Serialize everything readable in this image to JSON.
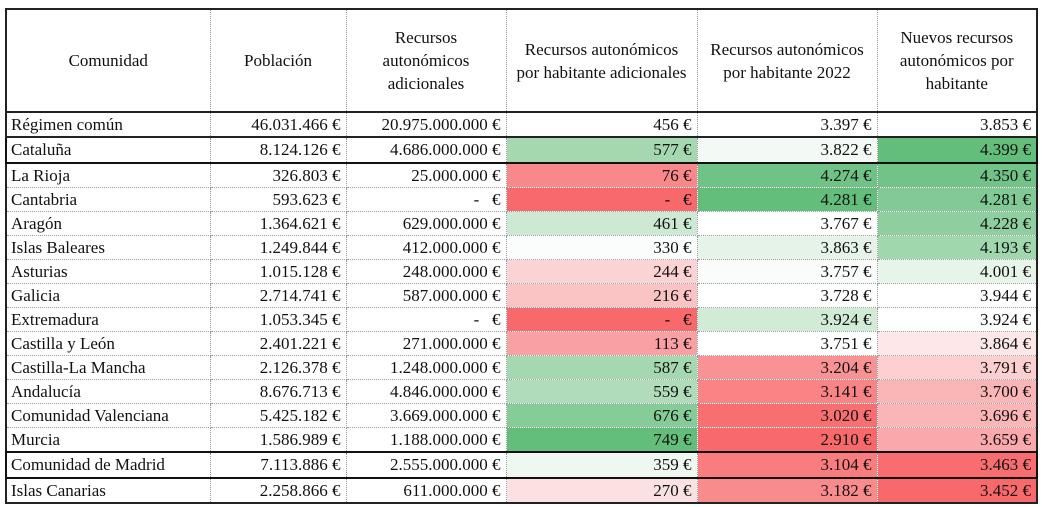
{
  "headers": [
    "Comunidad",
    "Población",
    "Recursos autonómicos adicionales",
    "Recursos autonómicos por habitante adicionales",
    "Recursos autonómicos por habitante 2022",
    "Nuevos recursos autonómicos por habitante"
  ],
  "rows": [
    {
      "name": "Régimen común",
      "pop": "46.031.466 €",
      "add": "20.975.000.000 €",
      "per_add": "456 €",
      "per_2022": "3.397 €",
      "new": "3.853 €",
      "bg": [
        "#ffffff",
        "#ffffff",
        "#ffffff"
      ],
      "highlight": false
    },
    {
      "name": "Cataluña",
      "pop": "8.124.126 €",
      "add": "4.686.000.000 €",
      "per_add": "577 €",
      "per_2022": "3.822 €",
      "new": "4.399 €",
      "bg": [
        "#a6d8b0",
        "#f3f9f4",
        "#63be7b"
      ],
      "highlight": true
    },
    {
      "name": "La Rioja",
      "pop": "326.803 €",
      "add": "25.000.000 €",
      "per_add": "76 €",
      "per_2022": "4.274 €",
      "new": "4.350 €",
      "bg": [
        "#f8888a",
        "#6fc386",
        "#71c387"
      ],
      "highlight": false
    },
    {
      "name": "Cantabria",
      "pop": "593.623 €",
      "add": "-   €",
      "per_add": "-   €",
      "per_2022": "4.281 €",
      "new": "4.281 €",
      "bg": [
        "#f8696b",
        "#63be7b",
        "#82ca95"
      ],
      "highlight": false
    },
    {
      "name": "Aragón",
      "pop": "1.364.621 €",
      "add": "629.000.000 €",
      "per_add": "461 €",
      "per_2022": "3.767 €",
      "new": "4.228 €",
      "bg": [
        "#cde9d3",
        "#ffffff",
        "#8fcf9f"
      ],
      "highlight": false
    },
    {
      "name": "Islas Baleares",
      "pop": "1.249.844 €",
      "add": "412.000.000 €",
      "per_add": "330 €",
      "per_2022": "3.863 €",
      "new": "4.193 €",
      "bg": [
        "#fbfdfc",
        "#e5f3e8",
        "#a0d7ad"
      ],
      "highlight": false
    },
    {
      "name": "Asturias",
      "pop": "1.015.128 €",
      "add": "248.000.000 €",
      "per_add": "244 €",
      "per_2022": "3.757 €",
      "new": "4.001 €",
      "bg": [
        "#fbd3d4",
        "#f9fcfa",
        "#e6f4e9"
      ],
      "highlight": false
    },
    {
      "name": "Galicia",
      "pop": "2.714.741 €",
      "add": "587.000.000 €",
      "per_add": "216 €",
      "per_2022": "3.728 €",
      "new": "3.944 €",
      "bg": [
        "#fac4c5",
        "#ffffff",
        "#ffffff"
      ],
      "highlight": false
    },
    {
      "name": "Extremadura",
      "pop": "1.053.345 €",
      "add": "-   €",
      "per_add": "-   €",
      "per_2022": "3.924 €",
      "new": "3.924 €",
      "bg": [
        "#f8696b",
        "#d1ebd7",
        "#ffffff"
      ],
      "highlight": false
    },
    {
      "name": "Castilla y León",
      "pop": "2.401.221 €",
      "add": "271.000.000 €",
      "per_add": "113 €",
      "per_2022": "3.751 €",
      "new": "3.864 €",
      "bg": [
        "#f9a0a2",
        "#ffffff",
        "#fde7e8"
      ],
      "highlight": false
    },
    {
      "name": "Castilla-La Mancha",
      "pop": "2.126.378 €",
      "add": "1.248.000.000 €",
      "per_add": "587 €",
      "per_2022": "3.204 €",
      "new": "3.791 €",
      "bg": [
        "#a5d8b1",
        "#f99294",
        "#fccfd0"
      ],
      "highlight": false
    },
    {
      "name": "Andalucía",
      "pop": "8.676.713 €",
      "add": "4.846.000.000 €",
      "per_add": "559 €",
      "per_2022": "3.141 €",
      "new": "3.700 €",
      "bg": [
        "#b0dcbb",
        "#f98486",
        "#fab6b7"
      ],
      "highlight": false
    },
    {
      "name": "Comunidad Valenciana",
      "pop": "5.425.182 €",
      "add": "3.669.000.000 €",
      "per_add": "676 €",
      "per_2022": "3.020 €",
      "new": "3.696 €",
      "bg": [
        "#86cc98",
        "#f86f71",
        "#fab5b6"
      ],
      "highlight": false
    },
    {
      "name": "Murcia",
      "pop": "1.586.989 €",
      "add": "1.188.000.000 €",
      "per_add": "749 €",
      "per_2022": "2.910 €",
      "new": "3.659 €",
      "bg": [
        "#63be7b",
        "#f8696b",
        "#f9a9ab"
      ],
      "highlight": false
    },
    {
      "name": "Comunidad de Madrid",
      "pop": "7.113.886 €",
      "add": "2.555.000.000 €",
      "per_add": "359 €",
      "per_2022": "3.104 €",
      "new": "3.463 €",
      "bg": [
        "#eef7f0",
        "#f97c7e",
        "#f86e70"
      ],
      "highlight": true
    },
    {
      "name": "Islas Canarias",
      "pop": "2.258.866 €",
      "add": "611.000.000 €",
      "per_add": "270 €",
      "per_2022": "3.182 €",
      "new": "3.452 €",
      "bg": [
        "#fbe1e2",
        "#f98b8d",
        "#f8696b"
      ],
      "highlight": false
    }
  ]
}
